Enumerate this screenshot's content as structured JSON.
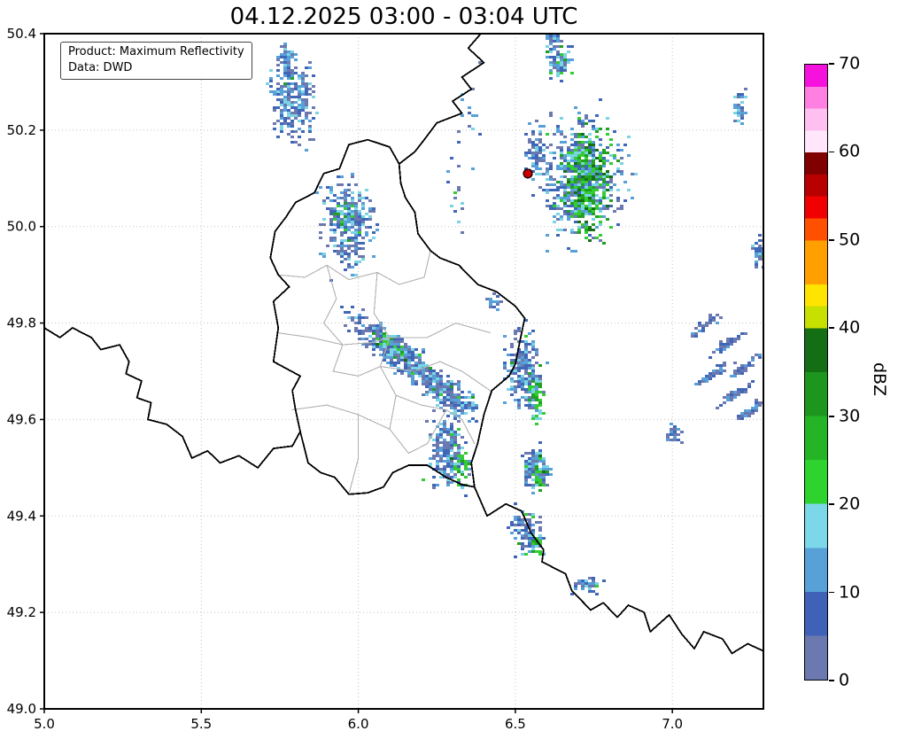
{
  "chart_data": {
    "type": "heatmap",
    "title": "04.12.2025 03:00 - 03:04 UTC",
    "xlabel": "",
    "ylabel": "",
    "xlim": [
      5.0,
      7.29
    ],
    "ylim": [
      49.0,
      50.4
    ],
    "xticks": [
      {
        "v": 5.0,
        "label": "5.0"
      },
      {
        "v": 5.5,
        "label": "5.5"
      },
      {
        "v": 6.0,
        "label": "6.0"
      },
      {
        "v": 6.5,
        "label": "6.5"
      },
      {
        "v": 7.0,
        "label": "7.0"
      }
    ],
    "yticks": [
      {
        "v": 49.0,
        "label": "49.0"
      },
      {
        "v": 49.2,
        "label": "49.2"
      },
      {
        "v": 49.4,
        "label": "49.4"
      },
      {
        "v": 49.6,
        "label": "49.6"
      },
      {
        "v": 49.8,
        "label": "49.8"
      },
      {
        "v": 50.0,
        "label": "50.0"
      },
      {
        "v": 50.2,
        "label": "50.2"
      },
      {
        "v": 50.4,
        "label": "50.4"
      }
    ],
    "grid": true,
    "annotation_box": {
      "line1": "Product: Maximum Reflectivity",
      "line2": "Data: DWD"
    },
    "colorbar": {
      "label": "dBZ",
      "min": 0,
      "max": 70,
      "ticks": [
        0,
        10,
        20,
        30,
        40,
        50,
        60,
        70
      ],
      "segments": [
        {
          "from": 0,
          "to": 5,
          "color": "#6b79b0"
        },
        {
          "from": 5,
          "to": 10,
          "color": "#3f62b8"
        },
        {
          "from": 10,
          "to": 15,
          "color": "#57a0d8"
        },
        {
          "from": 15,
          "to": 20,
          "color": "#7cd8e8"
        },
        {
          "from": 20,
          "to": 25,
          "color": "#2ed32e"
        },
        {
          "from": 25,
          "to": 30,
          "color": "#25b425"
        },
        {
          "from": 30,
          "to": 35,
          "color": "#1d961d"
        },
        {
          "from": 35,
          "to": 40,
          "color": "#146e14"
        },
        {
          "from": 40,
          "to": 42.5,
          "color": "#c8e000"
        },
        {
          "from": 42.5,
          "to": 45,
          "color": "#ffe400"
        },
        {
          "from": 45,
          "to": 50,
          "color": "#ffa000"
        },
        {
          "from": 50,
          "to": 52.5,
          "color": "#ff5000"
        },
        {
          "from": 52.5,
          "to": 55,
          "color": "#f00000"
        },
        {
          "from": 55,
          "to": 57.5,
          "color": "#b80000"
        },
        {
          "from": 57.5,
          "to": 60,
          "color": "#800000"
        },
        {
          "from": 60,
          "to": 62.5,
          "color": "#ffe6fa"
        },
        {
          "from": 62.5,
          "to": 65,
          "color": "#ffbff0"
        },
        {
          "from": 65,
          "to": 67.5,
          "color": "#ff80e0"
        },
        {
          "from": 67.5,
          "to": 70,
          "color": "#f512dd"
        }
      ]
    },
    "station_marker": {
      "lon": 6.54,
      "lat": 50.11,
      "color": "#c80000",
      "edge_color": "#000000",
      "radius_px": 5
    },
    "palette": [
      "#6b79b0",
      "#4066b8",
      "#57a0d8",
      "#79d4e4",
      "#33cc33",
      "#22a022",
      "#157015"
    ],
    "seed": 11,
    "echo_cluster_fields": [
      "lon",
      "lat",
      "half_width_deg",
      "half_height_deg",
      "rot_deg",
      "n_cells",
      "color_weights"
    ],
    "echo_clusters": [
      [
        5.79,
        50.26,
        0.1,
        0.11,
        0,
        260,
        [
          0.3,
          0.27,
          0.25,
          0.15,
          0.02,
          0.01,
          0
        ]
      ],
      [
        5.77,
        50.35,
        0.04,
        0.05,
        0,
        60,
        [
          0.3,
          0.27,
          0.25,
          0.15,
          0.02,
          0.01,
          0
        ]
      ],
      [
        5.96,
        50.01,
        0.12,
        0.125,
        0,
        340,
        [
          0.3,
          0.27,
          0.25,
          0.15,
          0.02,
          0.01,
          0
        ]
      ],
      [
        5.95,
        50.03,
        0.045,
        0.05,
        0,
        35,
        [
          0,
          0,
          0.1,
          0.2,
          0.45,
          0.2,
          0.05
        ]
      ],
      [
        6.7,
        50.1,
        0.195,
        0.185,
        0,
        580,
        [
          0.25,
          0.25,
          0.28,
          0.18,
          0.03,
          0.01,
          0
        ]
      ],
      [
        6.73,
        50.09,
        0.11,
        0.15,
        0,
        300,
        [
          0,
          0,
          0.05,
          0.12,
          0.38,
          0.28,
          0.17
        ]
      ],
      [
        6.63,
        50.35,
        0.055,
        0.06,
        0,
        100,
        [
          0.2,
          0.2,
          0.25,
          0.2,
          0.1,
          0.05,
          0
        ]
      ],
      [
        6.56,
        50.16,
        0.05,
        0.07,
        0,
        70,
        [
          0.3,
          0.27,
          0.25,
          0.15,
          0.02,
          0.01,
          0
        ]
      ],
      [
        7.21,
        50.25,
        0.03,
        0.06,
        0,
        40,
        [
          0.3,
          0.27,
          0.25,
          0.15,
          0.02,
          0.01,
          0
        ]
      ],
      [
        6.14,
        49.73,
        0.3,
        0.04,
        38,
        480,
        [
          0.3,
          0.27,
          0.25,
          0.15,
          0.02,
          0.01,
          0
        ]
      ],
      [
        6.1,
        49.76,
        0.1,
        0.025,
        38,
        30,
        [
          0,
          0,
          0.1,
          0.2,
          0.45,
          0.2,
          0.05
        ]
      ],
      [
        6.3,
        49.645,
        0.12,
        0.05,
        38,
        150,
        [
          0.25,
          0.25,
          0.28,
          0.18,
          0.03,
          0.01,
          0
        ]
      ],
      [
        6.52,
        49.7,
        0.085,
        0.11,
        0,
        250,
        [
          0.3,
          0.27,
          0.25,
          0.15,
          0.02,
          0.01,
          0
        ]
      ],
      [
        6.56,
        49.645,
        0.04,
        0.07,
        0,
        50,
        [
          0,
          0,
          0.1,
          0.2,
          0.45,
          0.2,
          0.05
        ]
      ],
      [
        6.28,
        49.53,
        0.09,
        0.1,
        0,
        220,
        [
          0.3,
          0.27,
          0.25,
          0.15,
          0.02,
          0.01,
          0
        ]
      ],
      [
        6.32,
        49.51,
        0.04,
        0.06,
        0,
        40,
        [
          0,
          0,
          0.1,
          0.2,
          0.45,
          0.2,
          0.05
        ]
      ],
      [
        6.56,
        49.5,
        0.06,
        0.065,
        0,
        130,
        [
          0.3,
          0.27,
          0.25,
          0.15,
          0.02,
          0.01,
          0
        ]
      ],
      [
        6.57,
        49.49,
        0.025,
        0.04,
        0,
        30,
        [
          0,
          0,
          0.1,
          0.2,
          0.45,
          0.2,
          0.05
        ]
      ],
      [
        6.53,
        49.37,
        0.07,
        0.06,
        0,
        130,
        [
          0.3,
          0.27,
          0.25,
          0.15,
          0.02,
          0.01,
          0
        ]
      ],
      [
        6.56,
        49.34,
        0.025,
        0.035,
        0,
        25,
        [
          0,
          0,
          0.1,
          0.2,
          0.45,
          0.2,
          0.05
        ]
      ],
      [
        6.72,
        49.26,
        0.065,
        0.022,
        0,
        50,
        [
          0.3,
          0.27,
          0.25,
          0.15,
          0.02,
          0.01,
          0
        ]
      ],
      [
        7.1,
        49.8,
        0.09,
        0.012,
        -35,
        45,
        [
          0.5,
          0.32,
          0.18,
          0,
          0,
          0,
          0
        ]
      ],
      [
        7.17,
        49.76,
        0.09,
        0.012,
        -35,
        45,
        [
          0.5,
          0.32,
          0.18,
          0,
          0,
          0,
          0
        ]
      ],
      [
        7.22,
        49.71,
        0.09,
        0.012,
        -35,
        45,
        [
          0.5,
          0.32,
          0.18,
          0,
          0,
          0,
          0
        ]
      ],
      [
        7.12,
        49.695,
        0.09,
        0.012,
        -35,
        45,
        [
          0.5,
          0.32,
          0.18,
          0,
          0,
          0,
          0
        ]
      ],
      [
        7.19,
        49.655,
        0.09,
        0.012,
        -35,
        45,
        [
          0.5,
          0.32,
          0.18,
          0,
          0,
          0,
          0
        ]
      ],
      [
        7.25,
        49.625,
        0.09,
        0.012,
        -35,
        40,
        [
          0.5,
          0.32,
          0.18,
          0,
          0,
          0,
          0
        ]
      ],
      [
        7.0,
        49.575,
        0.035,
        0.035,
        0,
        30,
        [
          0.5,
          0.32,
          0.18,
          0,
          0,
          0,
          0
        ]
      ],
      [
        7.27,
        49.95,
        0.03,
        0.045,
        0,
        40,
        [
          0.3,
          0.27,
          0.25,
          0.15,
          0.02,
          0.01,
          0
        ]
      ],
      [
        6.3,
        50.06,
        0.05,
        0.12,
        0,
        18,
        [
          0.3,
          0.27,
          0.25,
          0.15,
          0.02,
          0.01,
          0
        ]
      ],
      [
        6.43,
        49.85,
        0.035,
        0.025,
        0,
        20,
        [
          0.25,
          0.25,
          0.28,
          0.18,
          0.03,
          0.01,
          0
        ]
      ],
      [
        6.35,
        50.22,
        0.06,
        0.15,
        0,
        14,
        [
          0.3,
          0.27,
          0.25,
          0.15,
          0.02,
          0.01,
          0
        ]
      ],
      [
        6.62,
        50.4,
        0.04,
        0.03,
        0,
        30,
        [
          0.25,
          0.25,
          0.28,
          0.18,
          0.03,
          0.01,
          0
        ]
      ]
    ],
    "borders_national": [
      [
        [
          6.39,
          50.4
        ],
        [
          6.35,
          50.37
        ],
        [
          6.4,
          50.34
        ],
        [
          6.33,
          50.31
        ],
        [
          6.36,
          50.285
        ],
        [
          6.3,
          50.26
        ],
        [
          6.33,
          50.235
        ],
        [
          6.25,
          50.215
        ],
        [
          6.21,
          50.18
        ],
        [
          6.18,
          50.155
        ],
        [
          6.13,
          50.13
        ]
      ],
      [
        [
          6.13,
          50.13
        ],
        [
          6.1,
          50.165
        ],
        [
          6.03,
          50.18
        ],
        [
          5.97,
          50.17
        ],
        [
          5.94,
          50.12
        ],
        [
          5.89,
          50.11
        ],
        [
          5.86,
          50.07
        ],
        [
          5.8,
          50.05
        ],
        [
          5.77,
          50.02
        ],
        [
          5.735,
          49.99
        ],
        [
          5.72,
          49.935
        ],
        [
          5.745,
          49.9
        ],
        [
          5.78,
          49.875
        ],
        [
          5.73,
          49.845
        ],
        [
          5.745,
          49.79
        ],
        [
          5.73,
          49.72
        ],
        [
          5.815,
          49.69
        ],
        [
          5.79,
          49.66
        ],
        [
          5.8,
          49.62
        ],
        [
          5.815,
          49.575
        ],
        [
          5.84,
          49.51
        ],
        [
          5.88,
          49.49
        ],
        [
          5.925,
          49.48
        ],
        [
          5.97,
          49.445
        ],
        [
          6.03,
          49.448
        ],
        [
          6.08,
          49.46
        ],
        [
          6.11,
          49.49
        ],
        [
          6.16,
          49.505
        ],
        [
          6.22,
          49.505
        ],
        [
          6.28,
          49.48
        ],
        [
          6.33,
          49.465
        ],
        [
          6.37,
          49.46
        ],
        [
          6.36,
          49.51
        ],
        [
          6.38,
          49.55
        ],
        [
          6.4,
          49.61
        ],
        [
          6.425,
          49.66
        ],
        [
          6.48,
          49.69
        ],
        [
          6.5,
          49.715
        ],
        [
          6.52,
          49.78
        ],
        [
          6.53,
          49.81
        ],
        [
          6.5,
          49.835
        ],
        [
          6.44,
          49.865
        ],
        [
          6.38,
          49.88
        ],
        [
          6.32,
          49.92
        ],
        [
          6.26,
          49.935
        ],
        [
          6.23,
          49.95
        ],
        [
          6.19,
          49.985
        ],
        [
          6.18,
          50.03
        ],
        [
          6.15,
          50.06
        ],
        [
          6.135,
          50.09
        ],
        [
          6.13,
          50.13
        ]
      ],
      [
        [
          5.0,
          49.79
        ],
        [
          5.05,
          49.77
        ],
        [
          5.09,
          49.79
        ],
        [
          5.15,
          49.77
        ],
        [
          5.18,
          49.745
        ],
        [
          5.24,
          49.755
        ],
        [
          5.27,
          49.72
        ],
        [
          5.26,
          49.695
        ],
        [
          5.31,
          49.68
        ],
        [
          5.295,
          49.645
        ],
        [
          5.34,
          49.635
        ],
        [
          5.33,
          49.6
        ],
        [
          5.39,
          49.59
        ],
        [
          5.44,
          49.565
        ],
        [
          5.47,
          49.52
        ],
        [
          5.52,
          49.535
        ],
        [
          5.56,
          49.51
        ],
        [
          5.62,
          49.525
        ],
        [
          5.68,
          49.5
        ],
        [
          5.73,
          49.54
        ],
        [
          5.79,
          49.545
        ],
        [
          5.815,
          49.575
        ]
      ],
      [
        [
          6.37,
          49.46
        ],
        [
          6.41,
          49.4
        ],
        [
          6.47,
          49.425
        ],
        [
          6.52,
          49.41
        ],
        [
          6.55,
          49.365
        ],
        [
          6.59,
          49.33
        ],
        [
          6.585,
          49.305
        ],
        [
          6.66,
          49.28
        ],
        [
          6.68,
          49.245
        ],
        [
          6.74,
          49.205
        ],
        [
          6.78,
          49.22
        ],
        [
          6.825,
          49.19
        ],
        [
          6.86,
          49.215
        ],
        [
          6.91,
          49.2
        ],
        [
          6.93,
          49.16
        ],
        [
          6.99,
          49.195
        ],
        [
          7.03,
          49.155
        ],
        [
          7.07,
          49.125
        ],
        [
          7.1,
          49.16
        ],
        [
          7.16,
          49.145
        ],
        [
          7.19,
          49.115
        ],
        [
          7.24,
          49.135
        ],
        [
          7.29,
          49.12
        ]
      ]
    ],
    "borders_district": [
      [
        [
          5.74,
          49.9
        ],
        [
          5.83,
          49.895
        ],
        [
          5.9,
          49.92
        ],
        [
          5.97,
          49.89
        ],
        [
          6.06,
          49.905
        ],
        [
          6.13,
          49.88
        ],
        [
          6.21,
          49.895
        ],
        [
          6.23,
          49.95
        ]
      ],
      [
        [
          5.9,
          49.92
        ],
        [
          5.93,
          49.85
        ],
        [
          5.89,
          49.8
        ],
        [
          5.95,
          49.755
        ],
        [
          5.92,
          49.7
        ]
      ],
      [
        [
          6.06,
          49.905
        ],
        [
          6.05,
          49.82
        ],
        [
          6.1,
          49.77
        ],
        [
          6.07,
          49.71
        ],
        [
          6.12,
          49.65
        ],
        [
          6.1,
          49.58
        ],
        [
          6.16,
          49.53
        ]
      ],
      [
        [
          5.74,
          49.78
        ],
        [
          5.85,
          49.77
        ],
        [
          5.95,
          49.755
        ],
        [
          6.05,
          49.76
        ],
        [
          6.1,
          49.77
        ],
        [
          6.22,
          49.77
        ],
        [
          6.31,
          49.8
        ],
        [
          6.42,
          49.78
        ]
      ],
      [
        [
          5.92,
          49.7
        ],
        [
          6.0,
          49.69
        ],
        [
          6.07,
          49.71
        ],
        [
          6.18,
          49.7
        ],
        [
          6.26,
          49.72
        ],
        [
          6.33,
          49.7
        ],
        [
          6.42,
          49.66
        ]
      ],
      [
        [
          5.79,
          49.62
        ],
        [
          5.9,
          49.63
        ],
        [
          6.0,
          49.61
        ],
        [
          6.1,
          49.58
        ]
      ],
      [
        [
          6.12,
          49.65
        ],
        [
          6.2,
          49.63
        ],
        [
          6.28,
          49.62
        ],
        [
          6.33,
          49.6
        ],
        [
          6.37,
          49.55
        ]
      ],
      [
        [
          6.16,
          49.53
        ],
        [
          6.22,
          49.55
        ],
        [
          6.28,
          49.62
        ]
      ],
      [
        [
          5.97,
          49.445
        ],
        [
          6.0,
          49.52
        ],
        [
          6.0,
          49.61
        ]
      ]
    ]
  }
}
